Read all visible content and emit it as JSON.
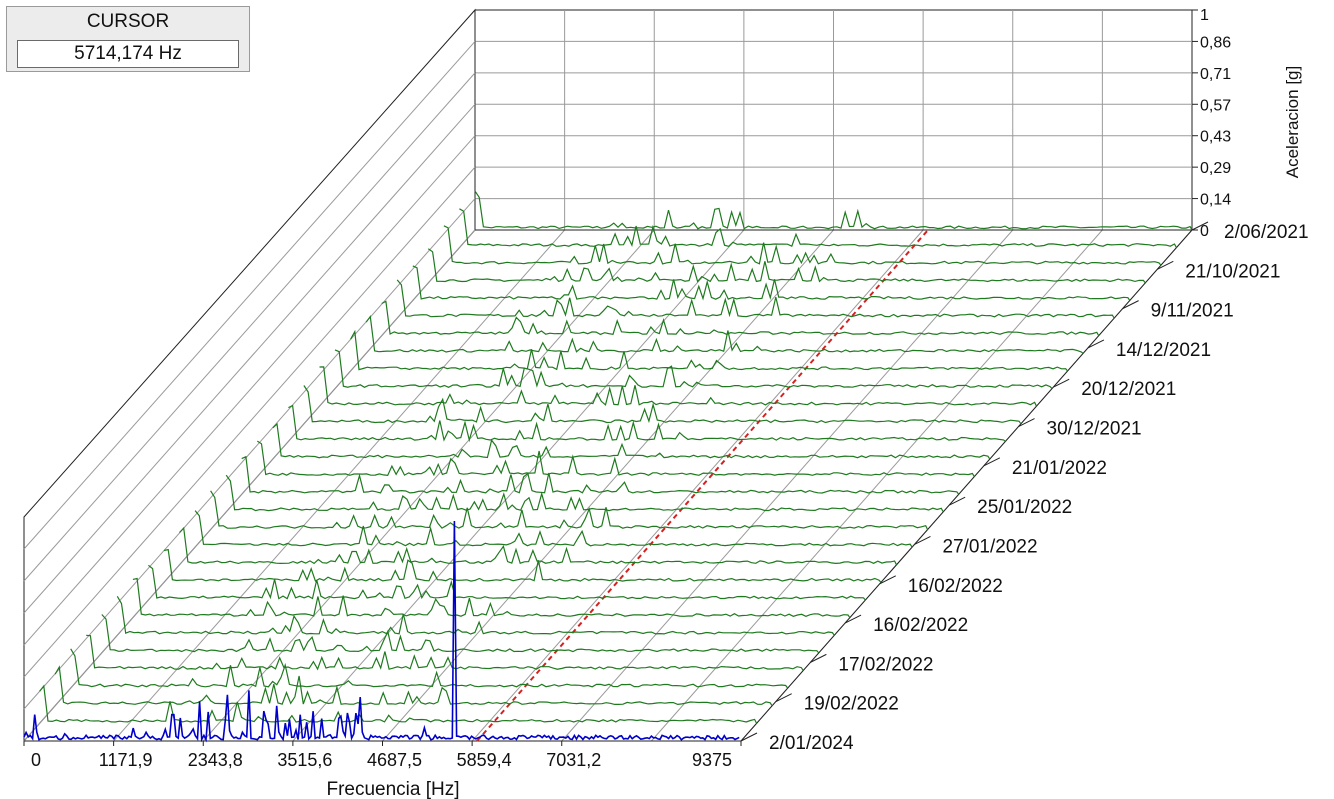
{
  "cursor": {
    "title": "CURSOR",
    "value": "5714,174 Hz"
  },
  "chart_data": {
    "type": "waterfall",
    "xlabel": "Frecuencia [Hz]",
    "zlabel": "Aceleracion [g]",
    "x_ticks": [
      "0",
      "1171,9",
      "2343,8",
      "3515,6",
      "4687,5",
      "5859,4",
      "7031,2",
      "9375"
    ],
    "x_range": [
      0,
      9375
    ],
    "z_ticks": [
      "1",
      "0,86",
      "0,71",
      "0,57",
      "0,43",
      "0,29",
      "0,14",
      "0"
    ],
    "z_range": [
      0,
      1
    ],
    "date_labels": [
      "2/06/2021",
      "21/10/2021",
      "9/11/2021",
      "14/12/2021",
      "20/12/2021",
      "30/12/2021",
      "21/01/2022",
      "25/01/2022",
      "27/01/2022",
      "16/02/2022",
      "16/02/2022",
      "17/02/2022",
      "19/02/2022",
      "2/01/2024"
    ],
    "cursor_hz": 5714.174,
    "grid": true,
    "series_colors": {
      "history": "#1f7a1f",
      "latest": "#0000cc",
      "cursor": "#d62020"
    },
    "latest_spectrum_peaks": [
      {
        "hz": 140,
        "g": 0.12
      },
      {
        "hz": 2300,
        "g": 0.18
      },
      {
        "hz": 2650,
        "g": 0.21
      },
      {
        "hz": 2950,
        "g": 0.23
      },
      {
        "hz": 3300,
        "g": 0.16
      },
      {
        "hz": 4400,
        "g": 0.2
      },
      {
        "hz": 5230,
        "g": 0.06
      },
      {
        "hz": 5620,
        "g": 1.0
      }
    ]
  }
}
